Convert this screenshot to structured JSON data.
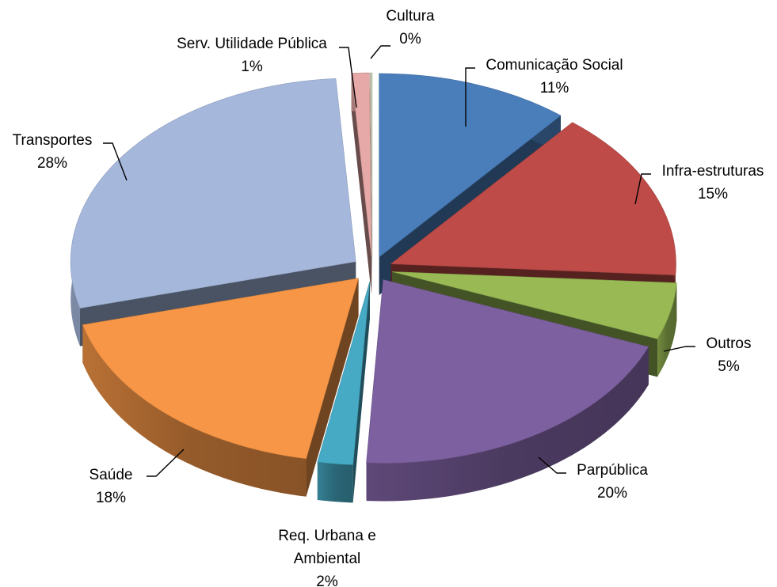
{
  "chart_data": {
    "type": "pie",
    "title": "",
    "style": "3d-exploded",
    "slices": [
      {
        "label": "Comunicação Social",
        "value": 11,
        "pct": "11%",
        "color": "#4a7ebb"
      },
      {
        "label": "Infra-estruturas",
        "value": 15,
        "pct": "15%",
        "color": "#be4b48"
      },
      {
        "label": "Outros",
        "value": 5,
        "pct": "5%",
        "color": "#98b954"
      },
      {
        "label": "Parpública",
        "value": 20,
        "pct": "20%",
        "color": "#7d60a0"
      },
      {
        "label": "Req. Urbana e Ambiental",
        "value": 2,
        "pct": "2%",
        "color": "#46aac5"
      },
      {
        "label": "Saúde",
        "value": 18,
        "pct": "18%",
        "color": "#f79646"
      },
      {
        "label": "Transportes",
        "value": 28,
        "pct": "28%",
        "color": "#a5b8dc"
      },
      {
        "label": "Serv. Utilidade Pública",
        "value": 1,
        "pct": "1%",
        "color": "#e6a9a7"
      },
      {
        "label": "Cultura",
        "value": 0,
        "pct": "0%",
        "color": "#c6c9b0"
      }
    ]
  }
}
